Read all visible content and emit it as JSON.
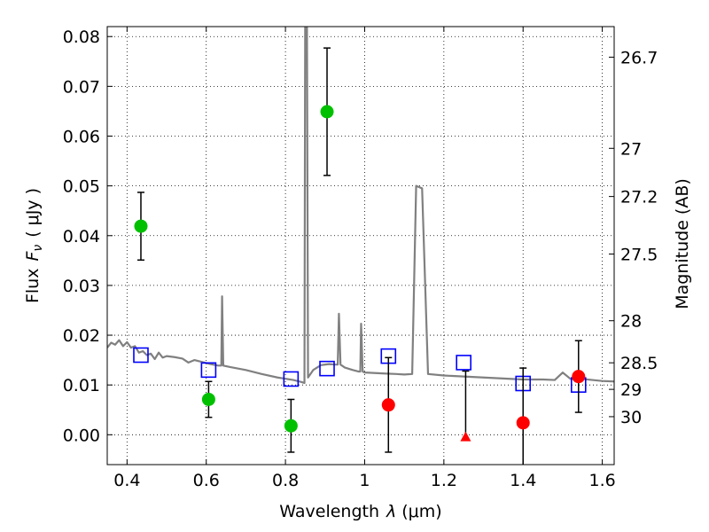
{
  "chart_data": {
    "type": "scatter",
    "xlabel_parts": {
      "text": "Wavelength",
      "symbol": "λ",
      "unit": "(μm)"
    },
    "ylabel_parts": {
      "text": "Flux",
      "symbol": "F",
      "subscript": "ν",
      "unit": "( μJy )"
    },
    "y2label": "Magnitude (AB)",
    "xlim": [
      0.35,
      1.63
    ],
    "ylim": [
      -0.006,
      0.082
    ],
    "grid": true,
    "x_ticks": [
      0.4,
      0.6,
      0.8,
      1.0,
      1.2,
      1.4,
      1.6
    ],
    "x_tick_labels": [
      "0.4",
      "0.6",
      "0.8",
      "1",
      "1.2",
      "1.4",
      "1.6"
    ],
    "y_ticks": [
      0.0,
      0.01,
      0.02,
      0.03,
      0.04,
      0.05,
      0.06,
      0.07,
      0.08
    ],
    "y_tick_labels": [
      "0.00",
      "0.01",
      "0.02",
      "0.03",
      "0.04",
      "0.05",
      "0.06",
      "0.07",
      "0.08"
    ],
    "magnitude_ticks": [
      {
        "label": "26.7",
        "mag": 26.7
      },
      {
        "label": "27",
        "mag": 27.0
      },
      {
        "label": "27.2",
        "mag": 27.2
      },
      {
        "label": "27.5",
        "mag": 27.5
      },
      {
        "label": "28",
        "mag": 28.0
      },
      {
        "label": "28.5",
        "mag": 28.5
      },
      {
        "label": "29",
        "mag": 29.0
      },
      {
        "label": "30",
        "mag": 30.0
      }
    ],
    "model_spectrum": {
      "color": "#808080",
      "points": [
        [
          0.35,
          0.0175
        ],
        [
          0.36,
          0.0185
        ],
        [
          0.37,
          0.0181
        ],
        [
          0.38,
          0.019
        ],
        [
          0.39,
          0.0178
        ],
        [
          0.4,
          0.0186
        ],
        [
          0.41,
          0.0175
        ],
        [
          0.42,
          0.0178
        ],
        [
          0.43,
          0.0165
        ],
        [
          0.44,
          0.0168
        ],
        [
          0.45,
          0.016
        ],
        [
          0.46,
          0.0163
        ],
        [
          0.47,
          0.0152
        ],
        [
          0.48,
          0.0165
        ],
        [
          0.49,
          0.0155
        ],
        [
          0.5,
          0.0158
        ],
        [
          0.52,
          0.0156
        ],
        [
          0.54,
          0.0153
        ],
        [
          0.555,
          0.0145
        ],
        [
          0.57,
          0.015
        ],
        [
          0.59,
          0.0146
        ],
        [
          0.61,
          0.0142
        ],
        [
          0.63,
          0.0139
        ],
        [
          0.638,
          0.0139
        ],
        [
          0.64,
          0.0278
        ],
        [
          0.643,
          0.0139
        ],
        [
          0.66,
          0.0136
        ],
        [
          0.7,
          0.013
        ],
        [
          0.74,
          0.0122
        ],
        [
          0.78,
          0.0115
        ],
        [
          0.82,
          0.011
        ],
        [
          0.84,
          0.0106
        ],
        [
          0.848,
          0.0104
        ],
        [
          0.85,
          0.09
        ],
        [
          0.854,
          0.09
        ],
        [
          0.857,
          0.0115
        ],
        [
          0.87,
          0.013
        ],
        [
          0.89,
          0.014
        ],
        [
          0.91,
          0.0142
        ],
        [
          0.925,
          0.0141
        ],
        [
          0.932,
          0.0141
        ],
        [
          0.935,
          0.0243
        ],
        [
          0.939,
          0.0141
        ],
        [
          0.95,
          0.0135
        ],
        [
          0.97,
          0.013
        ],
        [
          0.985,
          0.0127
        ],
        [
          0.989,
          0.0127
        ],
        [
          0.991,
          0.0223
        ],
        [
          0.995,
          0.0127
        ],
        [
          1.0,
          0.0125
        ],
        [
          1.05,
          0.0123
        ],
        [
          1.08,
          0.0122
        ],
        [
          1.1,
          0.0121
        ],
        [
          1.12,
          0.0122
        ],
        [
          1.13,
          0.05
        ],
        [
          1.145,
          0.0495
        ],
        [
          1.16,
          0.0122
        ],
        [
          1.2,
          0.0119
        ],
        [
          1.25,
          0.0117
        ],
        [
          1.3,
          0.0115
        ],
        [
          1.35,
          0.0113
        ],
        [
          1.4,
          0.0111
        ],
        [
          1.45,
          0.0111
        ],
        [
          1.48,
          0.011
        ],
        [
          1.5,
          0.0125
        ],
        [
          1.52,
          0.0112
        ],
        [
          1.55,
          0.0112
        ],
        [
          1.6,
          0.0108
        ],
        [
          1.63,
          0.0107
        ]
      ]
    },
    "model_photometry": {
      "marker": "square-open",
      "color": "#0000ff",
      "points": [
        {
          "x": 0.435,
          "y": 0.016
        },
        {
          "x": 0.606,
          "y": 0.013
        },
        {
          "x": 0.814,
          "y": 0.0112
        },
        {
          "x": 0.905,
          "y": 0.0133
        },
        {
          "x": 1.06,
          "y": 0.0158
        },
        {
          "x": 1.25,
          "y": 0.0145
        },
        {
          "x": 1.4,
          "y": 0.0103
        },
        {
          "x": 1.54,
          "y": 0.01
        }
      ]
    },
    "detections": {
      "marker": "circle",
      "color": "#00c000",
      "points": [
        {
          "x": 0.435,
          "y": 0.0419,
          "err": 0.0068
        },
        {
          "x": 0.606,
          "y": 0.0071,
          "err": 0.0036
        },
        {
          "x": 0.814,
          "y": 0.0018,
          "err": 0.0053
        },
        {
          "x": 0.905,
          "y": 0.0649,
          "err": 0.0128
        }
      ]
    },
    "nondetections": {
      "marker": "circle",
      "color": "#ff0000",
      "points": [
        {
          "x": 1.06,
          "y": 0.006,
          "err": 0.0095
        },
        {
          "x": 1.4,
          "y": 0.0024,
          "err": 0.011
        },
        {
          "x": 1.54,
          "y": 0.0117,
          "err": 0.0072
        }
      ]
    },
    "upper_limits": {
      "marker": "triangle",
      "color": "#ff0000",
      "points": [
        {
          "x": 1.255,
          "y": -0.0004,
          "y_upper": 0.0128
        }
      ]
    }
  }
}
